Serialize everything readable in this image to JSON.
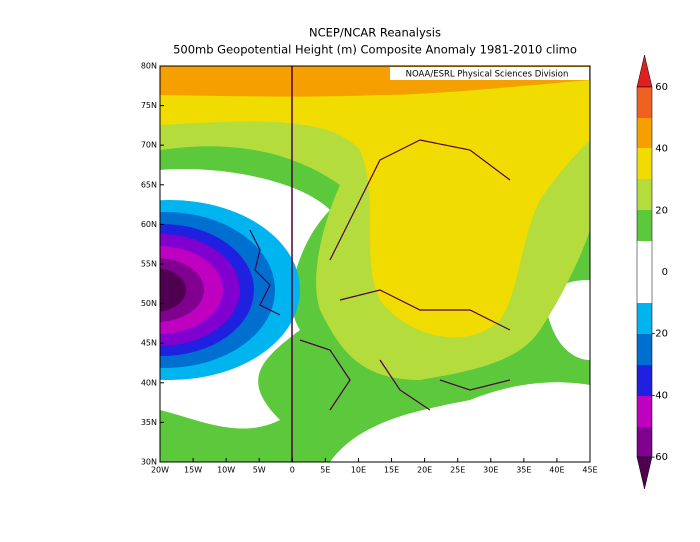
{
  "header": {
    "title": "NCEP/NCAR Reanalysis",
    "subtitle": "500mb Geopotential Height (m) Composite Anomaly 1981-2010 climo"
  },
  "map": {
    "credit": "NOAA/ESRL Physical Sciences Division",
    "lat_labels": [
      "80N",
      "75N",
      "70N",
      "65N",
      "60N",
      "55N",
      "50N",
      "45N",
      "40N",
      "35N",
      "30N"
    ],
    "lon_labels": [
      "20W",
      "15W",
      "10W",
      "5W",
      "0",
      "5E",
      "10E",
      "15E",
      "20E",
      "25E",
      "30E",
      "35E",
      "40E",
      "45E"
    ]
  },
  "colorbar": {
    "ticks": [
      60,
      40,
      20,
      0,
      -20,
      -40,
      -60
    ]
  }
}
